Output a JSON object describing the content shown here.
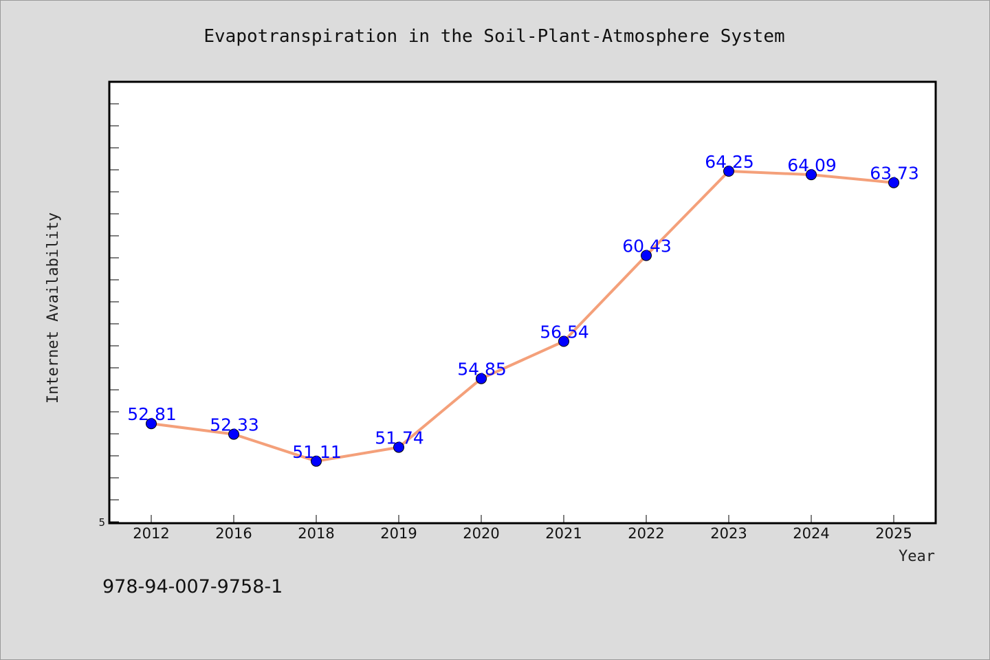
{
  "chart_data": {
    "type": "line",
    "title": "Evapotranspiration in the Soil-Plant-Atmosphere System",
    "xlabel": "Year",
    "ylabel": "Internet Availability",
    "categories": [
      "2012",
      "2016",
      "2018",
      "2019",
      "2020",
      "2021",
      "2022",
      "2023",
      "2024",
      "2025"
    ],
    "series": [
      {
        "values": [
          52.81,
          52.33,
          51.11,
          51.74,
          54.85,
          56.54,
          60.43,
          64.25,
          64.09,
          63.73
        ],
        "data_labels": [
          "52.81",
          "52.33",
          "51.11",
          "51.74",
          "54.85",
          "56.54",
          "60.43",
          "64.25",
          "64.09",
          "63.73"
        ]
      }
    ],
    "ylim": [
      48.3,
      68.3
    ],
    "ytick_labels": [
      "5"
    ],
    "line_color": "#f4a07a",
    "marker_color": "#0000ff",
    "label_color": "#0000ff",
    "background_color": "#dcdcdc",
    "plot_background": "#ffffff",
    "grid": false,
    "legend": "none"
  },
  "footer": {
    "text": "978-94-007-9758-1"
  }
}
